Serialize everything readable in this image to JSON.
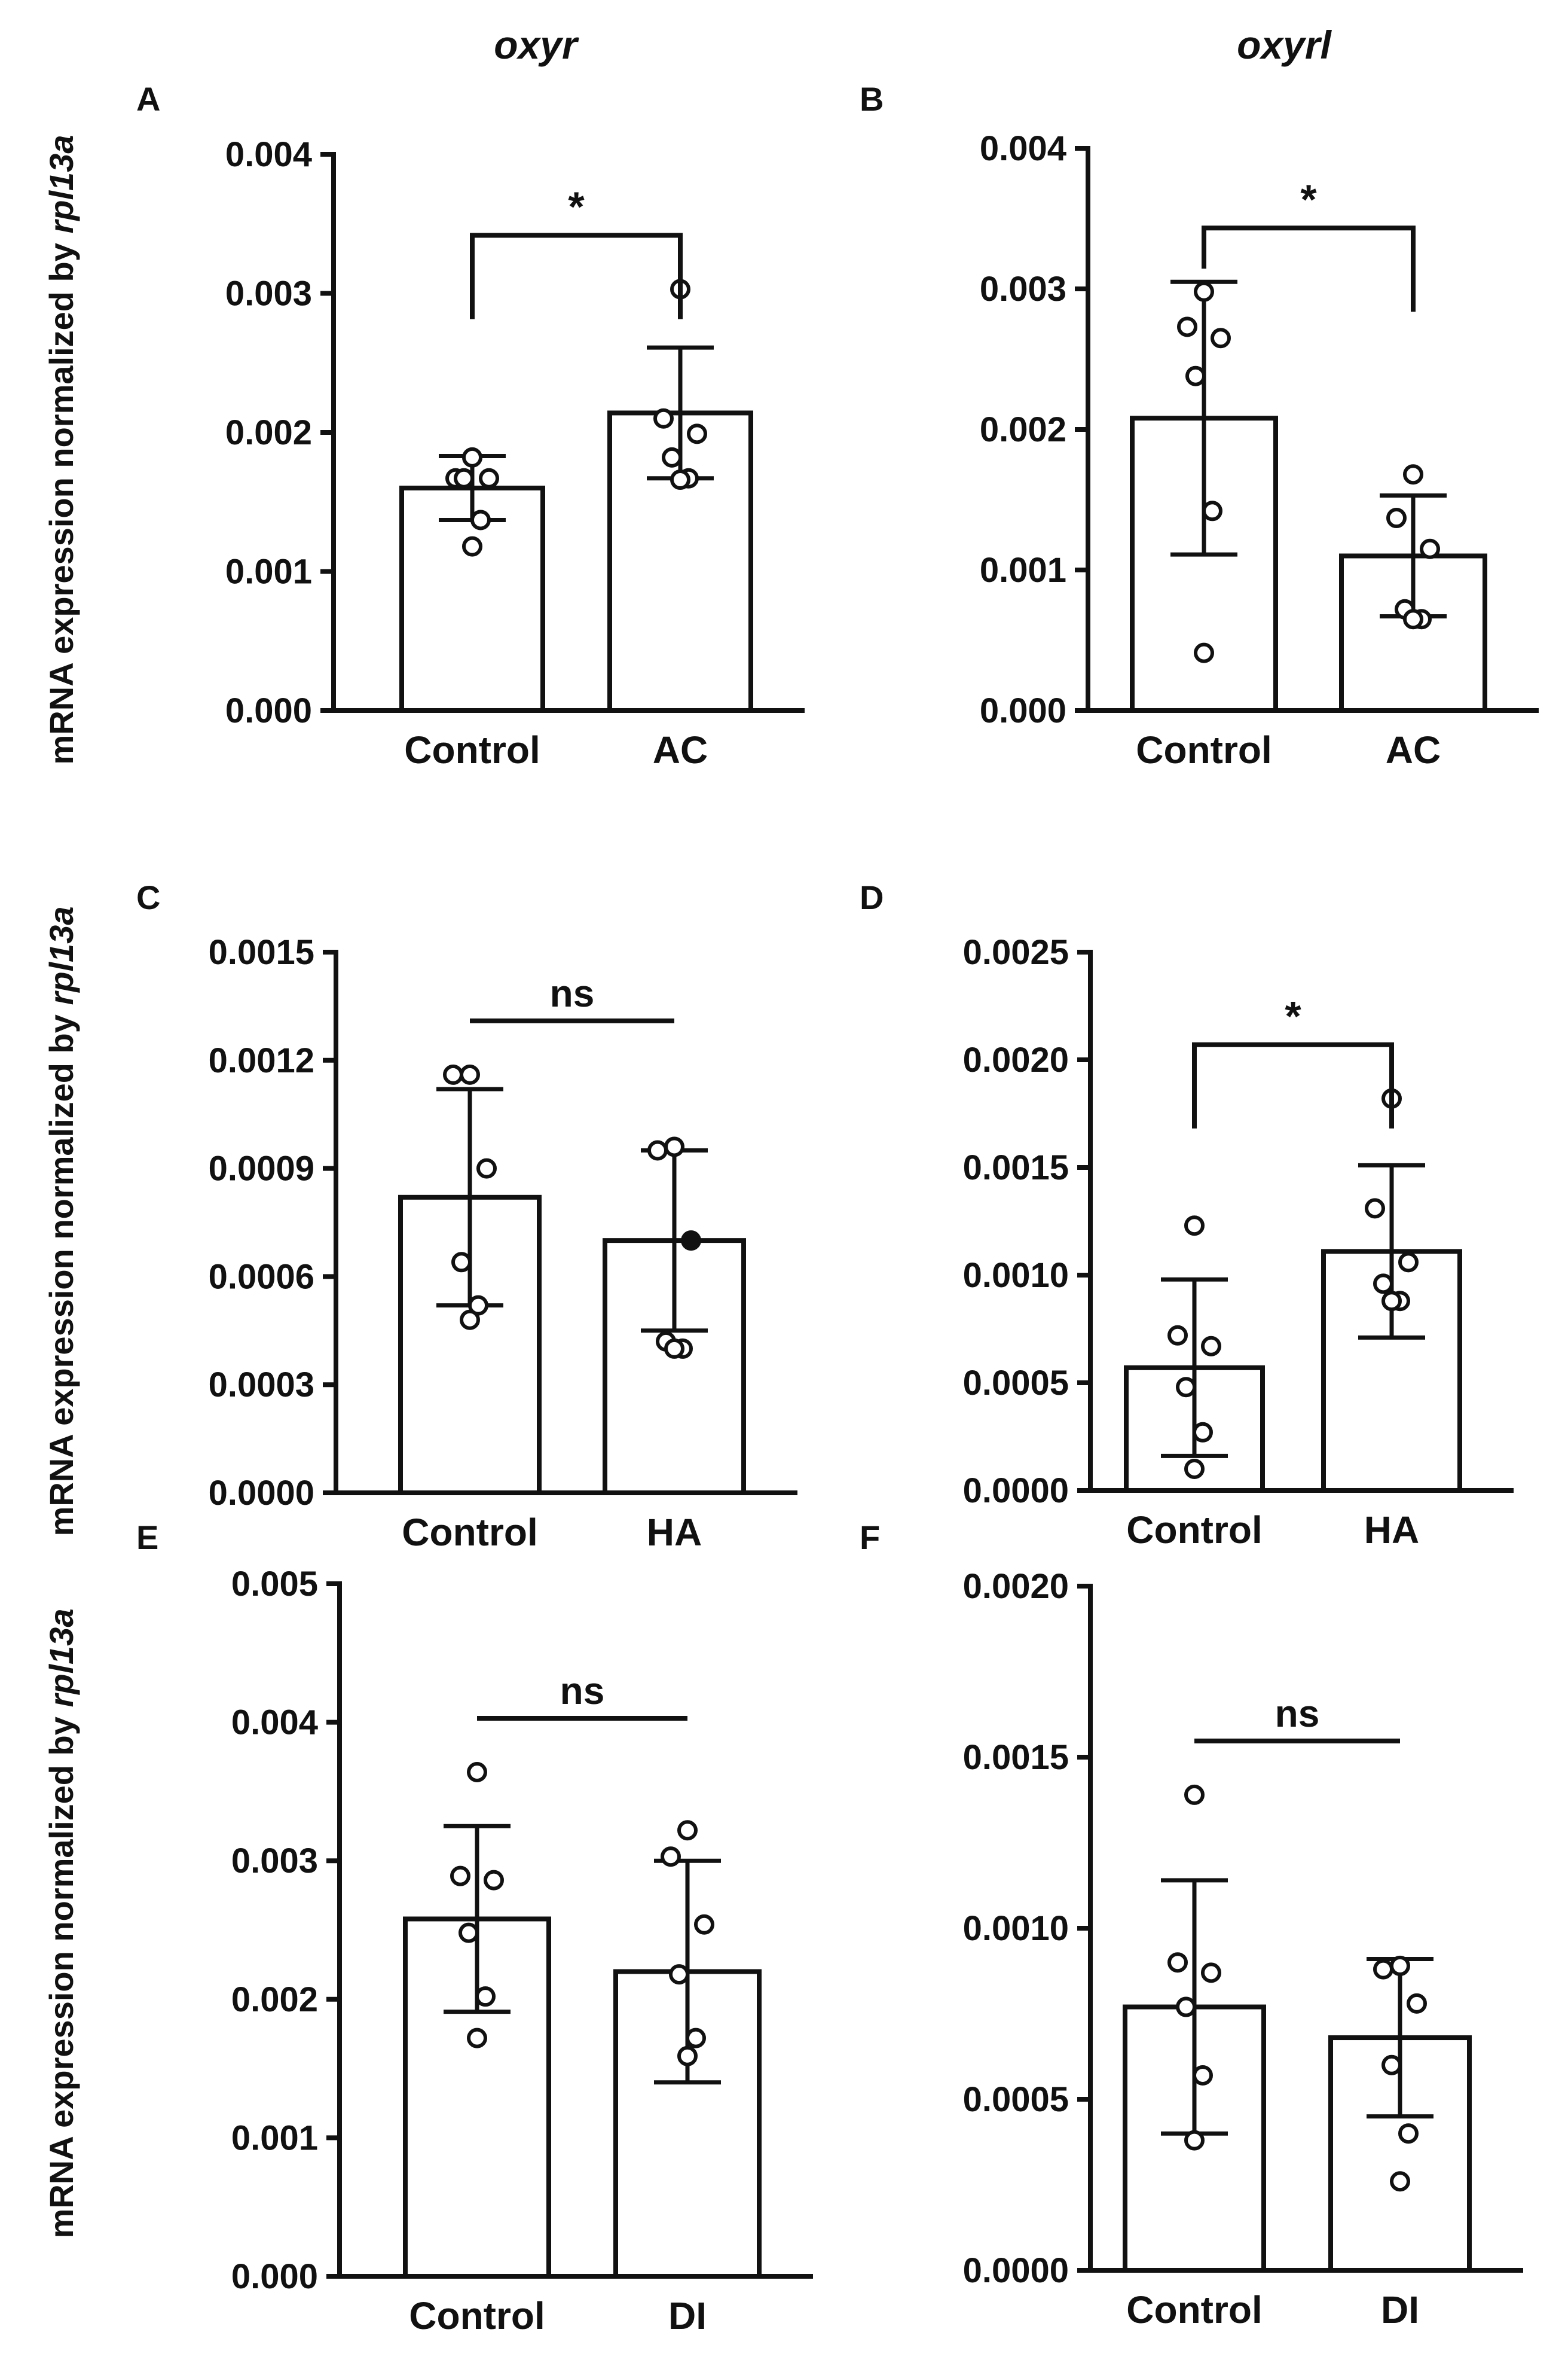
{
  "column_titles": [
    "oxyr",
    "oxyrl"
  ],
  "ylabel": {
    "prefix": "mRNA expression normalized by ",
    "gene": "rpl13a"
  },
  "chart_data": [
    {
      "type": "bar",
      "panel": "A",
      "column_title": "oxyr",
      "categories": [
        "Control",
        "AC"
      ],
      "values": [
        0.0016,
        0.00214
      ],
      "error": [
        0.00023,
        0.00047
      ],
      "points": [
        [
          0.00182,
          0.00167,
          0.00167,
          0.00167,
          0.00137,
          0.00118
        ],
        [
          0.00303,
          0.0021,
          0.00199,
          0.00182,
          0.00167,
          0.00166
        ]
      ],
      "ylim": [
        0,
        0.004
      ],
      "yticks": [
        "0.000",
        "0.001",
        "0.002",
        "0.003",
        "0.004"
      ],
      "significance": {
        "label": "*",
        "style": "bracket"
      }
    },
    {
      "type": "bar",
      "panel": "B",
      "column_title": "oxyrl",
      "categories": [
        "Control",
        "AC"
      ],
      "values": [
        0.00208,
        0.0011
      ],
      "error": [
        0.00097,
        0.00043
      ],
      "points": [
        [
          0.00298,
          0.00273,
          0.00265,
          0.00238,
          0.00142,
          0.00041
        ],
        [
          0.00168,
          0.00137,
          0.00115,
          0.00072,
          0.00065,
          0.00065
        ]
      ],
      "ylim": [
        0,
        0.004
      ],
      "yticks": [
        "0.000",
        "0.001",
        "0.002",
        "0.003",
        "0.004"
      ],
      "significance": {
        "label": "*",
        "style": "bracket"
      }
    },
    {
      "type": "bar",
      "panel": "C",
      "column_title": "oxyr",
      "categories": [
        "Control",
        "HA"
      ],
      "values": [
        0.00082,
        0.0007
      ],
      "error": [
        0.0003,
        0.00025
      ],
      "points": [
        [
          0.00116,
          0.00116,
          0.0009,
          0.00064,
          0.00052,
          0.00048
        ],
        [
          0.00096,
          0.00095,
          0.0007,
          0.00042,
          0.0004,
          0.0004
        ]
      ],
      "ylim": [
        0,
        0.0015
      ],
      "yticks": [
        "0.0000",
        "0.0003",
        "0.0006",
        "0.0009",
        "0.0012",
        "0.0015"
      ],
      "significance": {
        "label": "ns",
        "style": "line"
      }
    },
    {
      "type": "bar",
      "panel": "D",
      "column_title": "oxyrl",
      "categories": [
        "Control",
        "HA"
      ],
      "values": [
        0.00057,
        0.00111
      ],
      "error": [
        0.00041,
        0.0004
      ],
      "points": [
        [
          0.00123,
          0.00072,
          0.00067,
          0.00048,
          0.00027,
          0.0001
        ],
        [
          0.00182,
          0.00131,
          0.00106,
          0.00096,
          0.00088,
          0.00088
        ]
      ],
      "ylim": [
        0,
        0.0025
      ],
      "yticks": [
        "0.0000",
        "0.0005",
        "0.0010",
        "0.0015",
        "0.0020",
        "0.0025"
      ],
      "significance": {
        "label": "*",
        "style": "bracket"
      }
    },
    {
      "type": "bar",
      "panel": "E",
      "column_title": "oxyr",
      "categories": [
        "Control",
        "DI"
      ],
      "values": [
        0.00258,
        0.0022
      ],
      "error": [
        0.00067,
        0.0008
      ],
      "points": [
        [
          0.00364,
          0.00289,
          0.00286,
          0.00248,
          0.00202,
          0.00172
        ],
        [
          0.00322,
          0.00303,
          0.00254,
          0.00218,
          0.00172,
          0.00159
        ]
      ],
      "ylim": [
        0,
        0.005
      ],
      "yticks": [
        "0.000",
        "0.001",
        "0.002",
        "0.003",
        "0.004",
        "0.005"
      ],
      "significance": {
        "label": "ns",
        "style": "line"
      }
    },
    {
      "type": "bar",
      "panel": "F",
      "column_title": "oxyrl",
      "categories": [
        "Control",
        "DI"
      ],
      "values": [
        0.00077,
        0.00068
      ],
      "error": [
        0.00037,
        0.00023
      ],
      "points": [
        [
          0.00139,
          0.0009,
          0.00087,
          0.00077,
          0.00057,
          0.00038
        ],
        [
          0.00089,
          0.00088,
          0.00078,
          0.0006,
          0.0004,
          0.00026
        ]
      ],
      "ylim": [
        0,
        0.002
      ],
      "yticks": [
        "0.0000",
        "0.0005",
        "0.0010",
        "0.0015",
        "0.0020"
      ],
      "significance": {
        "label": "ns",
        "style": "line"
      }
    }
  ]
}
